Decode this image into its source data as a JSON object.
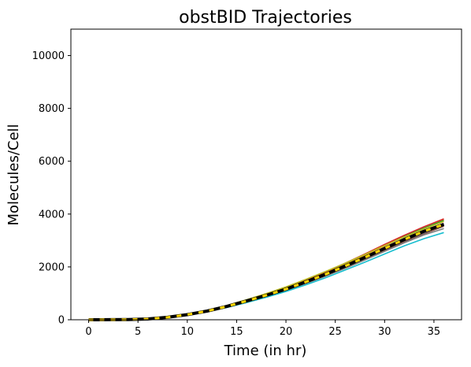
{
  "chart_data": {
    "type": "line",
    "title": "obstBID Trajectories",
    "xlabel": "Time (in hr)",
    "ylabel": "Molecules/Cell",
    "xlim": [
      -1.8,
      37.8
    ],
    "ylim": [
      0,
      11000
    ],
    "xticks": [
      0,
      5,
      10,
      15,
      20,
      25,
      30,
      35
    ],
    "yticks": [
      0,
      2000,
      4000,
      6000,
      8000,
      10000
    ],
    "grid": false,
    "legend": "none",
    "x": [
      0,
      2,
      4,
      6,
      8,
      10,
      12,
      14,
      16,
      18,
      20,
      22,
      24,
      26,
      28,
      30,
      32,
      34,
      36
    ],
    "series": [
      {
        "color": "#1f77b4",
        "values": [
          0,
          2,
          8,
          30,
          90,
          190,
          320,
          490,
          690,
          900,
          1130,
          1400,
          1680,
          1980,
          2300,
          2630,
          2960,
          3260,
          3560
        ]
      },
      {
        "color": "#ff7f0e",
        "values": [
          0,
          2,
          8,
          32,
          95,
          200,
          340,
          520,
          730,
          950,
          1200,
          1480,
          1780,
          2100,
          2450,
          2800,
          3150,
          3460,
          3780
        ]
      },
      {
        "color": "#2ca02c",
        "values": [
          0,
          2,
          8,
          32,
          95,
          205,
          350,
          535,
          750,
          980,
          1230,
          1510,
          1810,
          2130,
          2470,
          2820,
          3160,
          3470,
          3760
        ]
      },
      {
        "color": "#d62728",
        "values": [
          0,
          2,
          8,
          31,
          94,
          200,
          340,
          520,
          735,
          960,
          1215,
          1500,
          1810,
          2140,
          2490,
          2850,
          3200,
          3520,
          3820
        ]
      },
      {
        "color": "#9467bd",
        "values": [
          0,
          2,
          8,
          30,
          90,
          192,
          325,
          500,
          700,
          915,
          1150,
          1420,
          1710,
          2020,
          2340,
          2680,
          3010,
          3320,
          3620
        ]
      },
      {
        "color": "#8c564b",
        "values": [
          0,
          2,
          8,
          30,
          88,
          188,
          318,
          488,
          688,
          900,
          1130,
          1395,
          1680,
          1985,
          2300,
          2625,
          2950,
          3250,
          3540
        ]
      },
      {
        "color": "#e377c2",
        "values": [
          0,
          2,
          8,
          31,
          92,
          196,
          332,
          508,
          712,
          928,
          1165,
          1435,
          1725,
          2035,
          2360,
          2700,
          3040,
          3350,
          3650
        ]
      },
      {
        "color": "#7f7f7f",
        "values": [
          0,
          2,
          7,
          29,
          87,
          185,
          312,
          478,
          675,
          882,
          1108,
          1368,
          1648,
          1948,
          2262,
          2588,
          2912,
          3210,
          3450
        ]
      },
      {
        "color": "#bcbd22",
        "values": [
          0,
          2,
          8,
          32,
          96,
          206,
          352,
          540,
          758,
          990,
          1245,
          1525,
          1825,
          2140,
          2470,
          2810,
          3140,
          3440,
          3720
        ]
      },
      {
        "color": "#17becf",
        "values": [
          0,
          2,
          7,
          28,
          84,
          178,
          300,
          462,
          650,
          850,
          1070,
          1320,
          1590,
          1880,
          2180,
          2490,
          2800,
          3070,
          3300
        ]
      }
    ],
    "mean": {
      "line_color": "#000000",
      "dash_color": "#ffd700",
      "values": [
        0,
        2,
        8,
        31,
        91,
        194,
        329,
        505,
        709,
        925,
        1160,
        1430,
        1720,
        2030,
        2360,
        2700,
        3040,
        3350,
        3610
      ]
    }
  }
}
